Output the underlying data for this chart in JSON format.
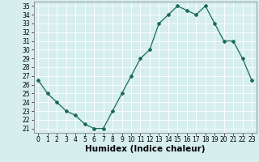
{
  "x": [
    0,
    1,
    2,
    3,
    4,
    5,
    6,
    7,
    8,
    9,
    10,
    11,
    12,
    13,
    14,
    15,
    16,
    17,
    18,
    19,
    20,
    21,
    22,
    23
  ],
  "y": [
    26.5,
    25.0,
    24.0,
    23.0,
    22.5,
    21.5,
    21.0,
    21.0,
    23.0,
    25.0,
    27.0,
    29.0,
    30.0,
    33.0,
    34.0,
    35.0,
    34.5,
    34.0,
    35.0,
    33.0,
    31.0,
    31.0,
    29.0,
    26.5
  ],
  "xlabel": "Humidex (Indice chaleur)",
  "ylabel": "",
  "xlim": [
    -0.5,
    23.5
  ],
  "ylim": [
    20.5,
    35.5
  ],
  "yticks": [
    21,
    22,
    23,
    24,
    25,
    26,
    27,
    28,
    29,
    30,
    31,
    32,
    33,
    34,
    35
  ],
  "xticks": [
    0,
    1,
    2,
    3,
    4,
    5,
    6,
    7,
    8,
    9,
    10,
    11,
    12,
    13,
    14,
    15,
    16,
    17,
    18,
    19,
    20,
    21,
    22,
    23
  ],
  "line_color": "#1a6b5a",
  "marker": "D",
  "marker_size": 2,
  "bg_color": "#d6eeee",
  "grid_color": "#ffffff",
  "border_color": "#888888",
  "tick_label_fontsize": 5.5,
  "xlabel_fontsize": 7.5
}
